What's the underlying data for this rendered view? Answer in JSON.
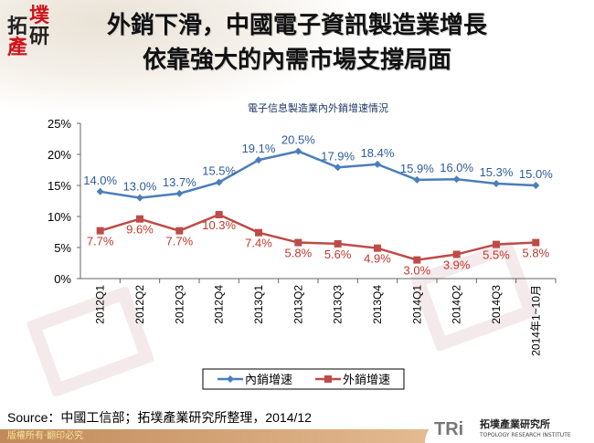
{
  "logo": {
    "chars": [
      "拓",
      "墣",
      "產",
      "研"
    ]
  },
  "title": {
    "line1": "外銷下滑，中國電子資訊製造業增長",
    "line2": "依靠強大的內需市場支撐局面"
  },
  "chart_data": {
    "type": "line",
    "title": "電子信息製造業內外銷增速情況",
    "categories": [
      "2012Q1",
      "2012Q2",
      "2012Q3",
      "2012Q4",
      "2013Q1",
      "2013Q2",
      "2013Q3",
      "2013Q4",
      "2014Q1",
      "2014Q2",
      "2014Q3",
      "2014年1~10月"
    ],
    "series": [
      {
        "name": "內銷增速",
        "color": "#4a7ebb",
        "marker": "diamond",
        "values": [
          14.0,
          13.0,
          13.7,
          15.5,
          19.1,
          20.5,
          17.9,
          18.4,
          15.9,
          16.0,
          15.3,
          15.0
        ],
        "labels": [
          "14.0%",
          "13.0%",
          "13.7%",
          "15.5%",
          "19.1%",
          "20.5%",
          "17.9%",
          "18.4%",
          "15.9%",
          "16.0%",
          "15.3%",
          "15.0%"
        ],
        "label_color": "#2e5c9a"
      },
      {
        "name": "外銷增速",
        "color": "#be4b48",
        "marker": "square",
        "values": [
          7.7,
          9.6,
          7.7,
          10.3,
          7.4,
          5.8,
          5.6,
          4.9,
          3.0,
          3.9,
          5.5,
          5.8
        ],
        "labels": [
          "7.7%",
          "9.6%",
          "7.7%",
          "10.3%",
          "7.4%",
          "5.8%",
          "5.6%",
          "4.9%",
          "3.0%",
          "3.9%",
          "5.5%",
          "5.8%"
        ],
        "label_color": "#c0392b"
      }
    ],
    "ylim": [
      0,
      25
    ],
    "yticks": [
      "0%",
      "5%",
      "10%",
      "15%",
      "20%",
      "25%"
    ],
    "grid": false,
    "legend": "bottom"
  },
  "source": "Source：中國工信部；拓墣產業研究所整理，2014/12",
  "footer": {
    "copyright": "版權所有‧翻印必究",
    "brand_tri": "TRi",
    "brand_name": "拓墣產業研究所",
    "brand_en": "TOPOLOGY RESEARCH INSTITUTE"
  }
}
